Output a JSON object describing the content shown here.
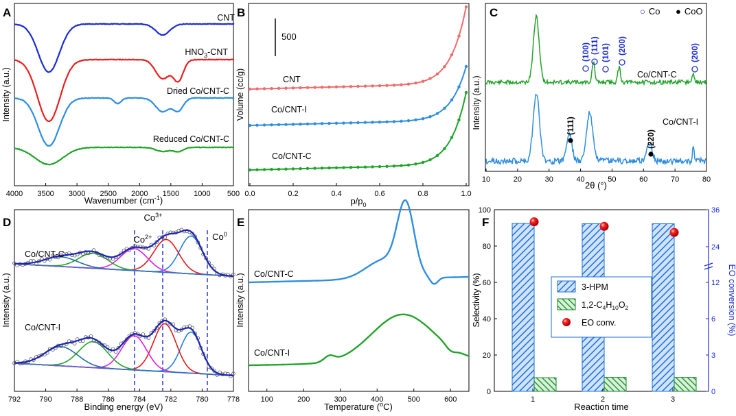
{
  "chart_data": [
    {
      "panel": "A",
      "type": "line",
      "xlabel": "Wavenumber (cm",
      "xlabel_sup": "-1",
      "xlabel_end": ")",
      "ylabel": "Intensity (a.u.)",
      "xlim": [
        4000,
        500
      ],
      "xticks": [
        "4000",
        "3500",
        "3000",
        "2500",
        "2000",
        "1500",
        "1000",
        "500"
      ],
      "series": [
        {
          "name": "CNT",
          "color": "#1a2bd6"
        },
        {
          "name": "HNO",
          "name_sub": "3",
          "name_end": "-CNT",
          "color": "#e8201f"
        },
        {
          "name": "Dried Co/CNT-C",
          "color": "#2e8de0"
        },
        {
          "name": "Reduced Co/CNT-C",
          "color": "#22a329"
        }
      ]
    },
    {
      "panel": "B",
      "type": "line",
      "xlabel": "p/p",
      "xlabel_sub": "0",
      "ylabel": "Volume (cc/g)",
      "xlim": [
        0.0,
        1.0
      ],
      "xticks": [
        "0.0",
        "0.2",
        "0.4",
        "0.6",
        "0.8",
        "1.0"
      ],
      "scalebar_label": "500",
      "series": [
        {
          "name": "CNT",
          "color": "#f06a6a"
        },
        {
          "name": "Co/CNT-I",
          "color": "#2e8de0"
        },
        {
          "name": "Co/CNT-C",
          "color": "#1fa32a"
        }
      ]
    },
    {
      "panel": "C",
      "type": "line",
      "xlabel": "2θ (°)",
      "ylabel": "Intensity (a.u.)",
      "xlim": [
        10,
        80
      ],
      "xticks": [
        "10",
        "20",
        "30",
        "40",
        "50",
        "60",
        "70",
        "80"
      ],
      "legend": [
        {
          "symbol": "○",
          "label": "Co"
        },
        {
          "symbol": "●",
          "label": "CoO"
        }
      ],
      "annotations_co": [
        "(100)",
        "(111)",
        "(101)",
        "(200)",
        "(200)"
      ],
      "annotations_coo": [
        "(111)",
        "(220)"
      ],
      "series": [
        {
          "name": "Co/CNT-C",
          "color": "#22a329"
        },
        {
          "name": "Co/CNT-I",
          "color": "#2e8de0"
        }
      ]
    },
    {
      "panel": "D",
      "type": "line",
      "xlabel": "Binding energy (eV)",
      "ylabel": "Intensity (a.u.)",
      "xlim": [
        792,
        777
      ],
      "xticks": [
        "792",
        "790",
        "788",
        "786",
        "784",
        "782",
        "780",
        "778"
      ],
      "peak_labels": {
        "co2": "Co",
        "co2_sup": "2+",
        "co3": "Co",
        "co3_sup": "3+",
        "co0": "Co",
        "co0_sup": "0"
      },
      "peak_positions_ev": [
        783.7,
        781.7,
        779.9
      ],
      "series": [
        {
          "name": "Co/CNT-C"
        },
        {
          "name": "Co/CNT-I"
        }
      ]
    },
    {
      "panel": "E",
      "type": "line",
      "xlabel": "Temperature (",
      "xlabel_sup": "o",
      "xlabel_end": "C)",
      "ylabel": "Intensity (a.u.)",
      "xlim": [
        50,
        650
      ],
      "xticks": [
        "100",
        "200",
        "300",
        "400",
        "500",
        "600"
      ],
      "series": [
        {
          "name": "Co/CNT-C",
          "color": "#2e8de0",
          "peak_temp_c": 480
        },
        {
          "name": "Co/CNT-I",
          "color": "#22a329",
          "peak_temp_c": 480
        }
      ]
    },
    {
      "panel": "F",
      "type": "bar",
      "xlabel": "Reaction time",
      "ylabel": "Selectivity (%)",
      "ylabel_right": "EO conversion (%)",
      "categories": [
        "1",
        "2",
        "3"
      ],
      "ylim": [
        0,
        100
      ],
      "yticks": [
        "0",
        "20",
        "40",
        "60",
        "80",
        "100"
      ],
      "right_ticks": [
        "0",
        "3",
        "6",
        "12",
        "24",
        "36"
      ],
      "series": [
        {
          "name": "3-HPM",
          "values": [
            92.5,
            92.3,
            92.3
          ]
        },
        {
          "name": "1,2-C",
          "name_sub1": "4",
          "name_mid": "H",
          "name_sub2": "10",
          "name_mid2": "O",
          "name_sub3": "2",
          "values": [
            7.5,
            7.7,
            7.7
          ]
        },
        {
          "name": "EO conv.",
          "values": [
            32.0,
            30.5,
            28.5
          ]
        }
      ]
    }
  ]
}
